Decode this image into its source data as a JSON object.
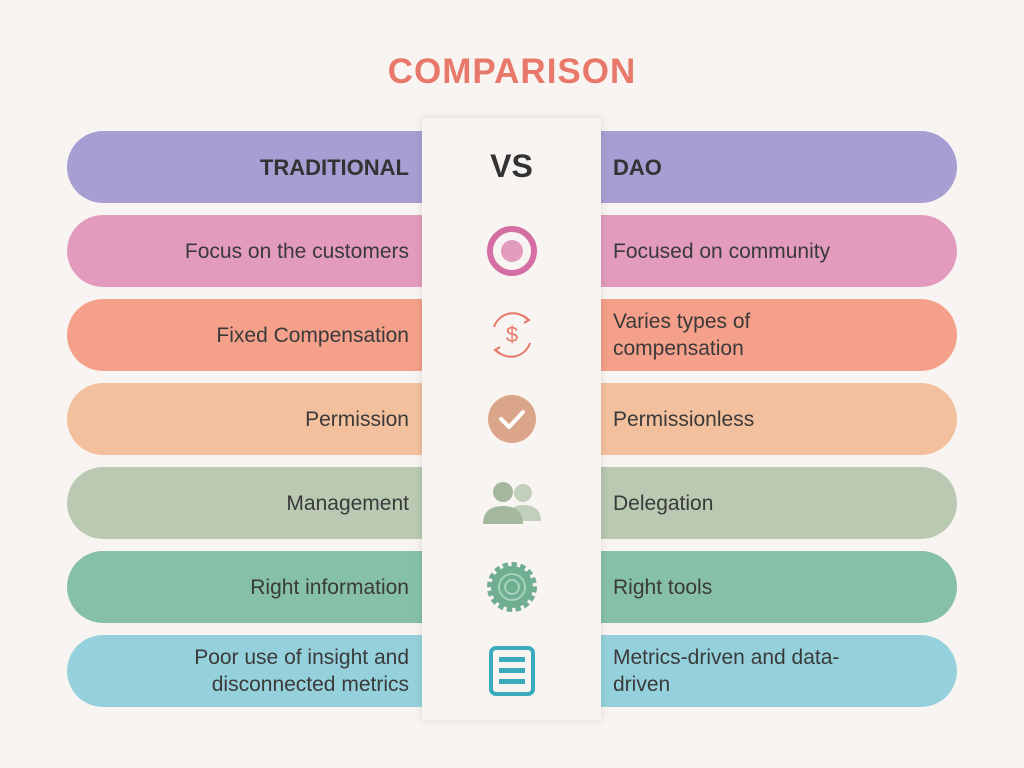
{
  "title": "COMPARISON",
  "header": {
    "left": "TRADITIONAL",
    "center": "VS",
    "right": "DAO"
  },
  "rows": [
    {
      "left": [
        "Focus on the customers"
      ],
      "right": [
        "Focused on community"
      ]
    },
    {
      "left": [
        "Fixed Compensation"
      ],
      "right": [
        "Varies types of",
        "compensation"
      ]
    },
    {
      "left": [
        "Permission"
      ],
      "right": [
        "Permissionless"
      ]
    },
    {
      "left": [
        "Management"
      ],
      "right": [
        "Delegation"
      ]
    },
    {
      "left": [
        "Right information"
      ],
      "right": [
        "Right tools"
      ]
    },
    {
      "left": [
        "Poor use of insight and",
        "disconnected metrics"
      ],
      "right": [
        "Metrics-driven and data-",
        "driven"
      ]
    }
  ]
}
